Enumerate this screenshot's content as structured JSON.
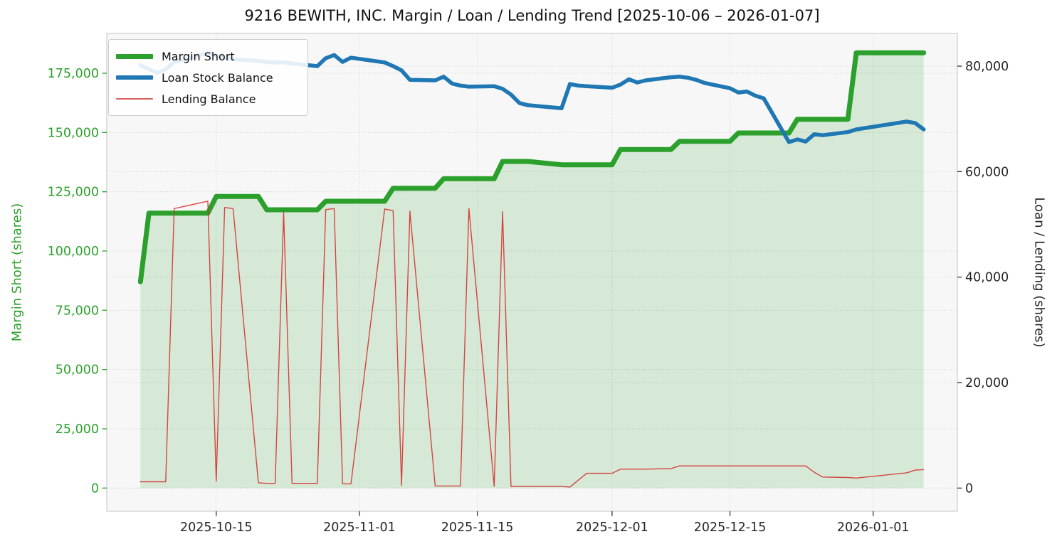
{
  "title": "9216 BEWITH, INC. Margin / Loan / Lending Trend [2025-10-06 – 2026-01-07]",
  "left_axis": {
    "label": "Margin Short (shares)",
    "color": "#2ca02c",
    "ticks": [
      0,
      25000,
      50000,
      75000,
      100000,
      125000,
      150000,
      175000
    ]
  },
  "right_axis": {
    "label": "Loan / Lending (shares)",
    "color": "#262626",
    "ticks": [
      0,
      20000,
      40000,
      60000,
      80000
    ]
  },
  "x_axis": {
    "ticks": [
      "2025-10-15",
      "2025-11-01",
      "2025-11-15",
      "2025-12-01",
      "2025-12-15",
      "2026-01-01"
    ]
  },
  "legend": {
    "items": [
      {
        "label": "Margin Short",
        "color": "#2ca02c",
        "thickness": 7
      },
      {
        "label": "Loan Stock Balance",
        "color": "#1f77b4",
        "thickness": 6
      },
      {
        "label": "Lending Balance",
        "color": "#d65f5f",
        "thickness": 2
      }
    ]
  },
  "colors": {
    "plot_bg": "#f7f7f7",
    "grid": "#c9c9c9",
    "spine": "#cccccc",
    "tick": "#333333",
    "text": "#262626",
    "margin_fill": "rgba(44,160,44,0.16)"
  },
  "chart_data": {
    "type": "line",
    "title": "9216 BEWITH, INC. Margin / Loan / Lending Trend [2025-10-06 – 2026-01-07]",
    "xlabel": "",
    "ylabel_left": "Margin Short (shares)",
    "ylabel_right": "Loan / Lending (shares)",
    "grid": true,
    "legend_position": "upper left",
    "x_range": [
      "2025-10-02",
      "2026-01-11"
    ],
    "y_left_range": [
      -9800,
      191800
    ],
    "y_right_range": [
      -4400,
      86200
    ],
    "dates": [
      "2025-10-06",
      "2025-10-07",
      "2025-10-08",
      "2025-10-09",
      "2025-10-10",
      "2025-10-14",
      "2025-10-15",
      "2025-10-16",
      "2025-10-17",
      "2025-10-20",
      "2025-10-21",
      "2025-10-22",
      "2025-10-23",
      "2025-10-24",
      "2025-10-27",
      "2025-10-28",
      "2025-10-29",
      "2025-10-30",
      "2025-10-31",
      "2025-11-04",
      "2025-11-05",
      "2025-11-06",
      "2025-11-07",
      "2025-11-10",
      "2025-11-11",
      "2025-11-12",
      "2025-11-13",
      "2025-11-14",
      "2025-11-17",
      "2025-11-18",
      "2025-11-19",
      "2025-11-20",
      "2025-11-21",
      "2025-11-25",
      "2025-11-26",
      "2025-11-27",
      "2025-11-28",
      "2025-12-01",
      "2025-12-02",
      "2025-12-03",
      "2025-12-04",
      "2025-12-05",
      "2025-12-08",
      "2025-12-09",
      "2025-12-10",
      "2025-12-11",
      "2025-12-12",
      "2025-12-15",
      "2025-12-16",
      "2025-12-17",
      "2025-12-18",
      "2025-12-19",
      "2025-12-22",
      "2025-12-23",
      "2025-12-24",
      "2025-12-25",
      "2025-12-26",
      "2025-12-29",
      "2025-12-30",
      "2026-01-05",
      "2026-01-06",
      "2026-01-07"
    ],
    "series": [
      {
        "name": "Margin Short",
        "axis": "left",
        "color": "#2ca02c",
        "line_width": 7,
        "area_fill": true,
        "values": [
          87000,
          116000,
          116000,
          116000,
          116000,
          116000,
          123000,
          123000,
          123000,
          123000,
          117400,
          117400,
          117400,
          117400,
          117400,
          121000,
          121000,
          121000,
          121000,
          121000,
          126500,
          126500,
          126500,
          126500,
          130500,
          130500,
          130500,
          130500,
          130500,
          137800,
          137800,
          137800,
          137800,
          136400,
          136400,
          136400,
          136400,
          136400,
          142800,
          142800,
          142800,
          142800,
          142800,
          146300,
          146300,
          146300,
          146300,
          146300,
          149800,
          149800,
          149800,
          149800,
          149800,
          155600,
          155600,
          155600,
          155600,
          155600,
          183600,
          183600,
          183600,
          183600
        ]
      },
      {
        "name": "Loan Stock Balance",
        "axis": "right",
        "color": "#1f77b4",
        "line_width": 5.5,
        "area_fill": false,
        "values": [
          80200,
          79400,
          78700,
          79400,
          80800,
          82500,
          82000,
          81600,
          81300,
          81000,
          80800,
          80700,
          80700,
          80500,
          80000,
          81500,
          82100,
          80800,
          81600,
          80700,
          80000,
          79200,
          77400,
          77300,
          78000,
          76700,
          76300,
          76100,
          76200,
          75700,
          74600,
          73000,
          72600,
          72000,
          76600,
          76300,
          76200,
          75900,
          76500,
          77500,
          76900,
          77300,
          77900,
          78000,
          77800,
          77400,
          76800,
          75800,
          75000,
          75200,
          74400,
          73900,
          65600,
          66100,
          65700,
          67100,
          66900,
          67500,
          68000,
          69500,
          69200,
          68000
        ]
      },
      {
        "name": "Lending Balance",
        "axis": "right",
        "color": "#d62728",
        "line_width": 1.4,
        "area_fill": false,
        "values": [
          1200,
          1200,
          1200,
          1200,
          53000,
          54400,
          1300,
          53200,
          53000,
          1000,
          900,
          900,
          52300,
          900,
          900,
          52800,
          53000,
          800,
          800,
          52900,
          52600,
          500,
          52500,
          400,
          400,
          400,
          400,
          53000,
          300,
          52400,
          300,
          300,
          300,
          300,
          200,
          1500,
          2800,
          2800,
          3600,
          3600,
          3600,
          3600,
          3700,
          4200,
          4200,
          4200,
          4200,
          4200,
          4200,
          4200,
          4200,
          4200,
          4200,
          4200,
          4200,
          3000,
          2100,
          2000,
          1900,
          2900,
          3400,
          3500
        ]
      }
    ]
  }
}
